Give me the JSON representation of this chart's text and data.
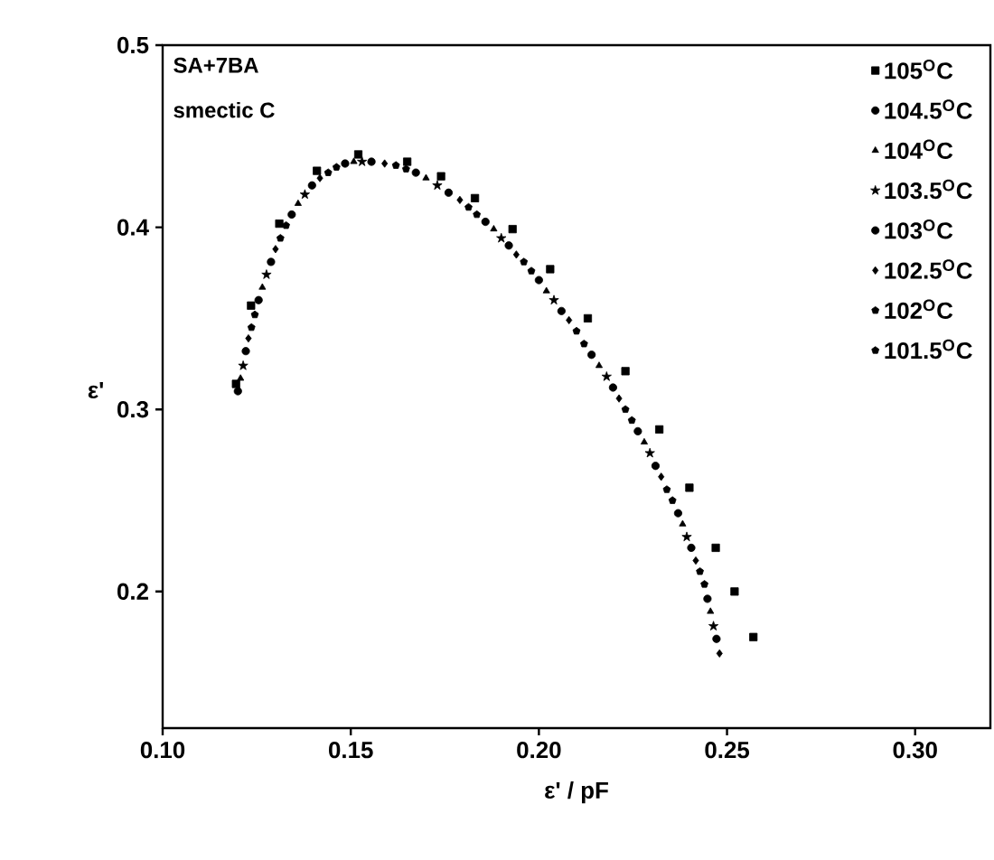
{
  "chart_data": {
    "type": "scatter",
    "xlabel": "ε' / pF",
    "ylabel": "ε'",
    "annotations": [
      "SA+7BA",
      "smectic C"
    ],
    "xlim": [
      0.1,
      0.32
    ],
    "ylim": [
      0.125,
      0.5
    ],
    "xticks": [
      {
        "value": 0.1,
        "label": "0.10"
      },
      {
        "value": 0.15,
        "label": "0.15"
      },
      {
        "value": 0.2,
        "label": "0.20"
      },
      {
        "value": 0.25,
        "label": "0.25"
      },
      {
        "value": 0.3,
        "label": "0.30"
      }
    ],
    "yticks": [
      0.2,
      0.3,
      0.4,
      0.5
    ],
    "legend": "top right",
    "grid": false,
    "series": [
      {
        "name": "105$^{O}$C",
        "color": "#000000",
        "marker": "square",
        "x": [
          0.1195,
          0.1235,
          0.131,
          0.141,
          0.152,
          0.165,
          0.174,
          0.183,
          0.193,
          0.203,
          0.213,
          0.223,
          0.232,
          0.24,
          0.247,
          0.252,
          0.257
        ],
        "values": [
          0.314,
          0.357,
          0.402,
          0.431,
          0.44,
          0.436,
          0.428,
          0.416,
          0.399,
          0.377,
          0.35,
          0.321,
          0.289,
          0.257,
          0.224,
          0.2,
          0.175
        ]
      },
      {
        "name": "104.5$^{O}$C",
        "color": "#000000",
        "marker": "circle",
        "x": [
          0.12,
          0.1255,
          0.1343,
          0.1485,
          0.1673,
          0.1858,
          0.2,
          0.214,
          0.2263,
          0.237,
          0.2448
        ],
        "values": [
          0.31,
          0.36,
          0.407,
          0.435,
          0.43,
          0.403,
          0.371,
          0.33,
          0.288,
          0.243,
          0.196
        ]
      },
      {
        "name": "104$^{O}$C",
        "color": "#000000",
        "marker": "triangle",
        "x": [
          0.1207,
          0.1265,
          0.136,
          0.1508,
          0.17,
          0.188,
          0.202,
          0.216,
          0.228,
          0.2382,
          0.2456
        ],
        "values": [
          0.317,
          0.367,
          0.413,
          0.436,
          0.427,
          0.399,
          0.365,
          0.324,
          0.282,
          0.237,
          0.189
        ]
      },
      {
        "name": "103.5$^{O}$C",
        "color": "#000000",
        "marker": "star",
        "x": [
          0.1214,
          0.1276,
          0.1378,
          0.153,
          0.173,
          0.19,
          0.204,
          0.218,
          0.2295,
          0.2393,
          0.2464
        ],
        "values": [
          0.324,
          0.374,
          0.418,
          0.436,
          0.423,
          0.394,
          0.36,
          0.318,
          0.276,
          0.23,
          0.181
        ]
      },
      {
        "name": "103$^{O}$C",
        "color": "#000000",
        "marker": "circle",
        "x": [
          0.1221,
          0.1288,
          0.1397,
          0.1555,
          0.176,
          0.192,
          0.206,
          0.2197,
          0.231,
          0.2405,
          0.2472
        ],
        "values": [
          0.332,
          0.381,
          0.423,
          0.436,
          0.419,
          0.39,
          0.354,
          0.312,
          0.269,
          0.224,
          0.174
        ]
      },
      {
        "name": "102.5$^{O}$C",
        "color": "#000000",
        "marker": "diamond",
        "x": [
          0.1228,
          0.13,
          0.1418,
          0.159,
          0.179,
          0.194,
          0.208,
          0.2213,
          0.2325,
          0.2417,
          0.248
        ],
        "values": [
          0.339,
          0.388,
          0.427,
          0.435,
          0.415,
          0.385,
          0.349,
          0.306,
          0.263,
          0.217,
          0.166
        ]
      },
      {
        "name": "102$^{O}$C",
        "color": "#000000",
        "x": [
          0.1236,
          0.1313,
          0.144,
          0.162,
          0.1813,
          0.196,
          0.21,
          0.223,
          0.234,
          0.2428
        ],
        "values": [
          0.345,
          0.394,
          0.43,
          0.434,
          0.411,
          0.381,
          0.343,
          0.3,
          0.256,
          0.211
        ]
      },
      {
        "name": "101.5$^{O}$C",
        "color": "#000000",
        "x": [
          0.1245,
          0.1328,
          0.1462,
          0.1647,
          0.1835,
          0.198,
          0.212,
          0.2247,
          0.2355,
          0.244
        ],
        "values": [
          0.352,
          0.401,
          0.433,
          0.432,
          0.407,
          0.376,
          0.336,
          0.294,
          0.25,
          0.204
        ]
      }
    ]
  }
}
